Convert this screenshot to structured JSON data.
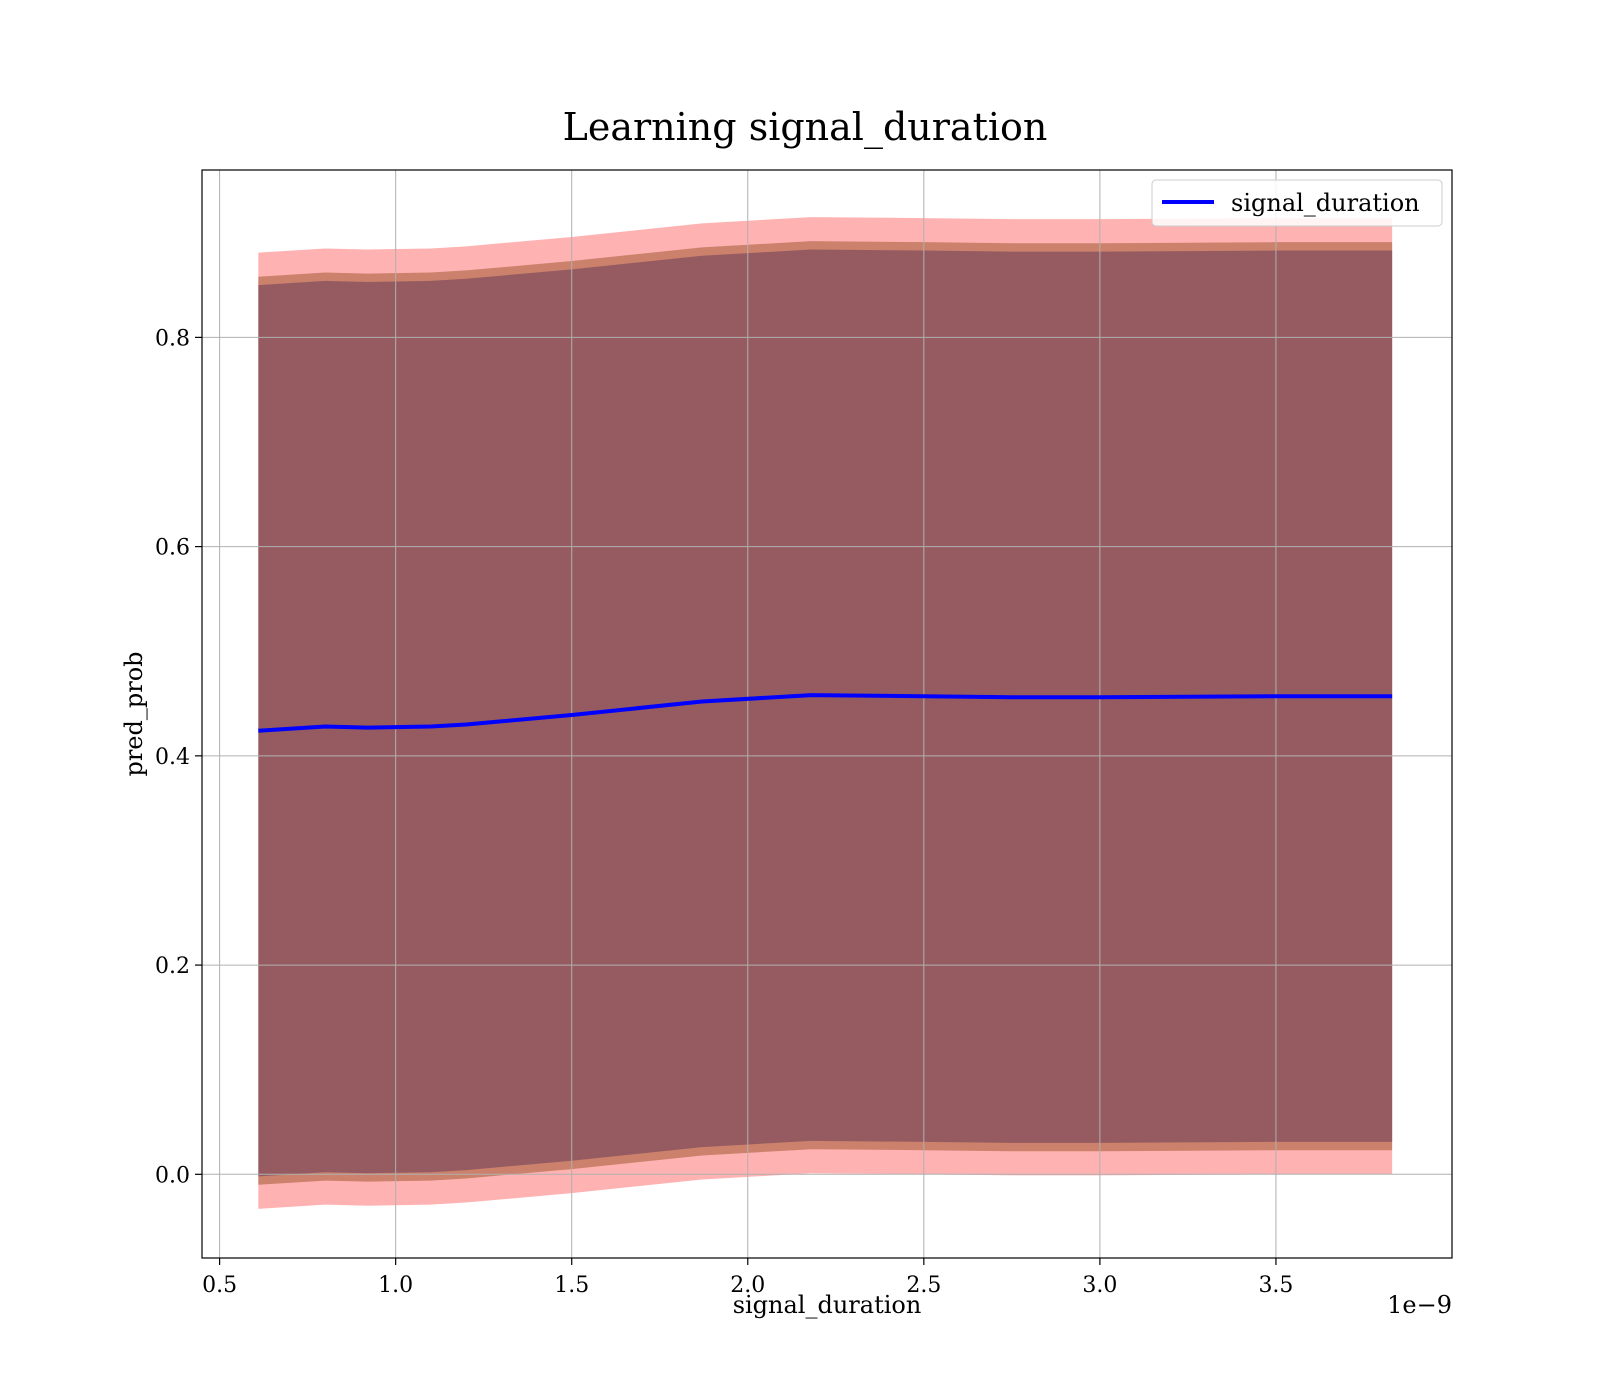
{
  "chart_data": {
    "type": "area",
    "title": "Learning signal_duration",
    "xlabel": "signal_duration",
    "ylabel": "pred_prob",
    "x_offset_label": "1e−9",
    "xlim": [
      0.45,
      4.0
    ],
    "ylim": [
      -0.08,
      0.96
    ],
    "x_ticks": [
      0.5,
      1.0,
      1.5,
      2.0,
      2.5,
      3.0,
      3.5
    ],
    "x_tick_labels": [
      "0.5",
      "1.0",
      "1.5",
      "2.0",
      "2.5",
      "3.0",
      "3.5"
    ],
    "y_ticks": [
      0.0,
      0.2,
      0.4,
      0.6,
      0.8
    ],
    "y_tick_labels": [
      "0.0",
      "0.2",
      "0.4",
      "0.6",
      "0.8"
    ],
    "grid": true,
    "legend_position": "top-right",
    "x": [
      0.61,
      0.8,
      0.92,
      1.1,
      1.2,
      1.5,
      1.87,
      2.18,
      2.5,
      2.75,
      3.0,
      3.5,
      3.83
    ],
    "series": [
      {
        "name": "signal_duration",
        "color": "#0000ff",
        "values": [
          0.424,
          0.428,
          0.427,
          0.428,
          0.43,
          0.439,
          0.452,
          0.458,
          0.457,
          0.456,
          0.456,
          0.457,
          0.457
        ]
      }
    ],
    "bands": [
      {
        "color": "#ff0000",
        "opacity": 0.3,
        "upper": [
          0.881,
          0.885,
          0.884,
          0.885,
          0.887,
          0.896,
          0.909,
          0.915,
          0.914,
          0.913,
          0.913,
          0.914,
          0.914
        ],
        "lower": [
          -0.033,
          -0.029,
          -0.03,
          -0.029,
          -0.027,
          -0.018,
          -0.005,
          0.001,
          0.0,
          -0.001,
          -0.001,
          0.0,
          0.0
        ]
      },
      {
        "color": "#8b4513",
        "opacity": 0.45,
        "upper": [
          0.858,
          0.862,
          0.861,
          0.862,
          0.864,
          0.873,
          0.886,
          0.892,
          0.891,
          0.89,
          0.89,
          0.891,
          0.891
        ],
        "lower": [
          -0.01,
          -0.006,
          -0.007,
          -0.006,
          -0.004,
          0.005,
          0.018,
          0.024,
          0.023,
          0.022,
          0.022,
          0.023,
          0.023
        ]
      },
      {
        "color": "#6a3d5a",
        "opacity": 0.55,
        "upper": [
          0.85,
          0.854,
          0.853,
          0.854,
          0.856,
          0.865,
          0.878,
          0.884,
          0.883,
          0.882,
          0.882,
          0.883,
          0.883
        ],
        "lower": [
          -0.002,
          0.002,
          0.001,
          0.002,
          0.004,
          0.013,
          0.026,
          0.032,
          0.031,
          0.03,
          0.03,
          0.031,
          0.031
        ]
      }
    ]
  }
}
